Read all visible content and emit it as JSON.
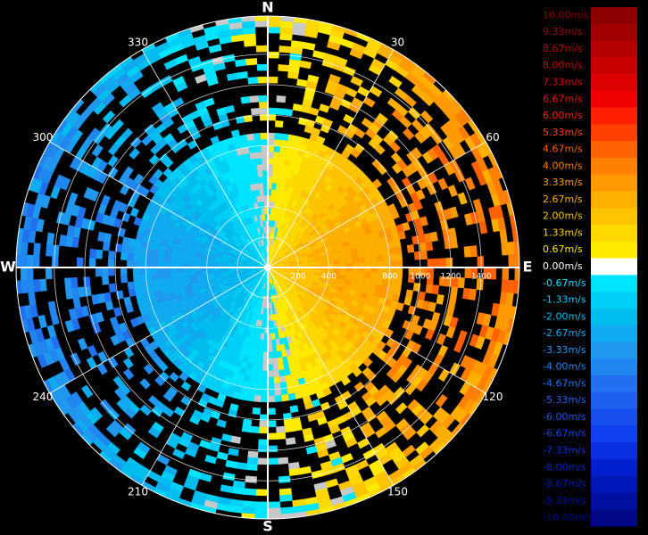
{
  "chart_data": {
    "type": "ppi",
    "compass": [
      {
        "value": 0,
        "label": "N"
      },
      {
        "value": 90,
        "label": "E"
      },
      {
        "value": 180,
        "label": "S"
      },
      {
        "value": 270,
        "label": "W"
      }
    ],
    "bearing_labels": [
      30,
      60,
      120,
      150,
      210,
      240,
      300,
      330
    ],
    "range_labels": [
      200,
      400,
      800,
      1000,
      1200,
      1400
    ],
    "rlim": [
      0,
      1650
    ],
    "colorbar": [
      {
        "label": "10.00m/s",
        "color": "#8c0000"
      },
      {
        "label": "9.33m/s",
        "color": "#a00000"
      },
      {
        "label": "8.67m/s",
        "color": "#b40000"
      },
      {
        "label": "8.00m/s",
        "color": "#c80000"
      },
      {
        "label": "7.33m/s",
        "color": "#dc0000"
      },
      {
        "label": "6.67m/s",
        "color": "#f00000"
      },
      {
        "label": "6.00m/s",
        "color": "#ff2000"
      },
      {
        "label": "5.33m/s",
        "color": "#ff4000"
      },
      {
        "label": "4.67m/s",
        "color": "#ff6000"
      },
      {
        "label": "4.00m/s",
        "color": "#ff8000"
      },
      {
        "label": "3.33m/s",
        "color": "#ff9a00"
      },
      {
        "label": "2.67m/s",
        "color": "#ffaf00"
      },
      {
        "label": "2.00m/s",
        "color": "#ffc400"
      },
      {
        "label": "1.33m/s",
        "color": "#ffd800"
      },
      {
        "label": "0.67m/s",
        "color": "#ffeb00"
      },
      {
        "label": "0.00m/s",
        "color": "#ffffff"
      },
      {
        "label": "-0.67m/s",
        "color": "#00e5ff"
      },
      {
        "label": "-1.33m/s",
        "color": "#00d0f8"
      },
      {
        "label": "-2.00m/s",
        "color": "#00bdf0"
      },
      {
        "label": "-2.67m/s",
        "color": "#10aaf0"
      },
      {
        "label": "-3.33m/s",
        "color": "#2098f0"
      },
      {
        "label": "-4.00m/s",
        "color": "#2086f0"
      },
      {
        "label": "-4.67m/s",
        "color": "#2070f0"
      },
      {
        "label": "-5.33m/s",
        "color": "#2060f0"
      },
      {
        "label": "-6.00m/s",
        "color": "#1850f0"
      },
      {
        "label": "-6.67m/s",
        "color": "#1040f0"
      },
      {
        "label": "-7.33m/s",
        "color": "#0830e0"
      },
      {
        "label": "-8.00m/s",
        "color": "#0020d0"
      },
      {
        "label": "-8.67m/s",
        "color": "#0018b8"
      },
      {
        "label": "-9.33m/s",
        "color": "#0010a0"
      },
      {
        "label": "-10.00m/s",
        "color": "#000888"
      }
    ]
  }
}
